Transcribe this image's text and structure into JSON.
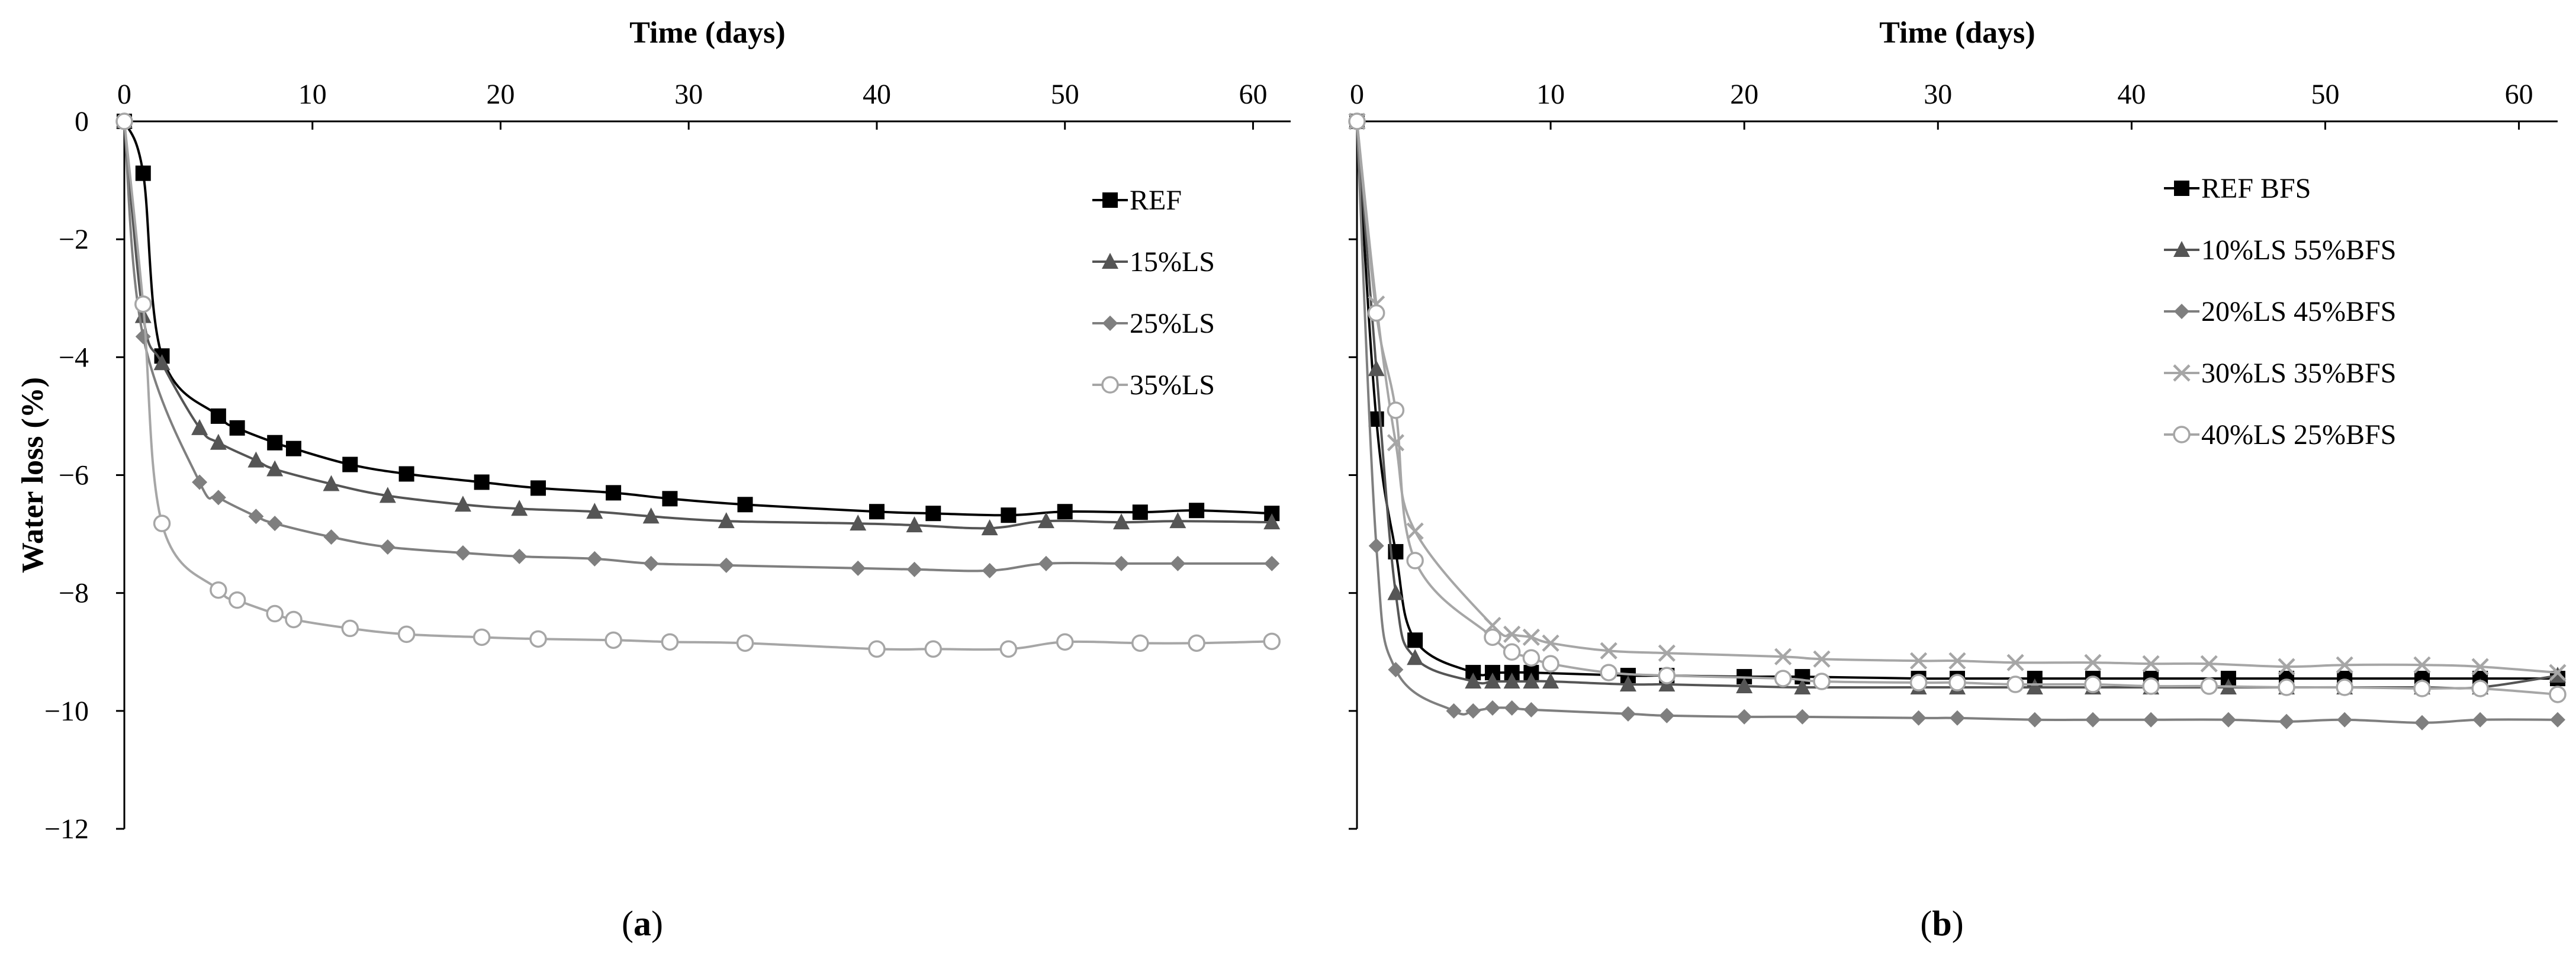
{
  "chart_data": [
    {
      "type": "line",
      "panel_label": "(a)",
      "panel_letter": "a",
      "title": "",
      "xlabel": "Time (days)",
      "ylabel": "Water loss (%)",
      "xlim": [
        0,
        62
      ],
      "ylim": [
        -12,
        0
      ],
      "xticks": [
        0,
        10,
        20,
        30,
        40,
        50,
        60
      ],
      "yticks": [
        0,
        -2,
        -4,
        -6,
        -8,
        -10,
        -12
      ],
      "xaxis_position": "top",
      "legend_position": "top-right",
      "series": [
        {
          "name": "REF",
          "marker": "square",
          "color": "#000000",
          "x": [
            0,
            1,
            2,
            5,
            6,
            8,
            9,
            12,
            15,
            19,
            22,
            26,
            29,
            33,
            40,
            43,
            47,
            50,
            54,
            57,
            61
          ],
          "y": [
            0,
            -0.88,
            -3.98,
            -5.0,
            -5.2,
            -5.45,
            -5.55,
            -5.82,
            -5.98,
            -6.12,
            -6.22,
            -6.3,
            -6.4,
            -6.5,
            -6.62,
            -6.65,
            -6.68,
            -6.62,
            -6.63,
            -6.6,
            -6.65
          ]
        },
        {
          "name": "15%LS",
          "marker": "triangle",
          "color": "#555555",
          "x": [
            0,
            1,
            2,
            4,
            5,
            7,
            8,
            11,
            14,
            18,
            21,
            25,
            28,
            32,
            39,
            42,
            46,
            49,
            53,
            56,
            61
          ],
          "y": [
            0,
            -3.3,
            -4.1,
            -5.2,
            -5.45,
            -5.75,
            -5.9,
            -6.15,
            -6.35,
            -6.5,
            -6.57,
            -6.62,
            -6.7,
            -6.78,
            -6.82,
            -6.85,
            -6.9,
            -6.78,
            -6.8,
            -6.78,
            -6.8
          ]
        },
        {
          "name": "25%LS",
          "marker": "diamond",
          "color": "#7f7f7f",
          "x": [
            0,
            1,
            4,
            5,
            7,
            8,
            11,
            14,
            18,
            21,
            25,
            28,
            32,
            39,
            42,
            46,
            49,
            53,
            56,
            61
          ],
          "y": [
            0,
            -3.65,
            -6.12,
            -6.38,
            -6.7,
            -6.82,
            -7.05,
            -7.22,
            -7.32,
            -7.38,
            -7.42,
            -7.5,
            -7.53,
            -7.58,
            -7.6,
            -7.62,
            -7.5,
            -7.5,
            -7.5,
            -7.5
          ]
        },
        {
          "name": "35%LS",
          "marker": "circle",
          "color": "#a6a6a6",
          "x": [
            0,
            1,
            2,
            5,
            6,
            8,
            9,
            12,
            15,
            19,
            22,
            26,
            29,
            33,
            40,
            43,
            47,
            50,
            54,
            57,
            61
          ],
          "y": [
            0,
            -3.1,
            -6.82,
            -7.95,
            -8.12,
            -8.35,
            -8.45,
            -8.6,
            -8.7,
            -8.75,
            -8.78,
            -8.8,
            -8.83,
            -8.85,
            -8.95,
            -8.95,
            -8.95,
            -8.83,
            -8.85,
            -8.85,
            -8.82
          ]
        }
      ]
    },
    {
      "type": "line",
      "panel_label": "(b)",
      "panel_letter": "b",
      "title": "",
      "xlabel": "Time (days)",
      "ylabel": "Water loss (%)",
      "xlim": [
        0,
        62
      ],
      "ylim": [
        -12,
        0
      ],
      "xticks": [
        0,
        10,
        20,
        30,
        40,
        50,
        60
      ],
      "yticks": [
        0,
        -2,
        -4,
        -6,
        -8,
        -10,
        -12
      ],
      "xaxis_position": "top",
      "legend_position": "top-right",
      "series": [
        {
          "name": "REF BFS",
          "marker": "square",
          "color": "#000000",
          "x": [
            0,
            1,
            2,
            3,
            6,
            7,
            8,
            9,
            14,
            16,
            20,
            23,
            29,
            31,
            35,
            38,
            41,
            45,
            48,
            51,
            55,
            58,
            62
          ],
          "y": [
            0,
            -5.05,
            -7.3,
            -8.8,
            -9.35,
            -9.35,
            -9.35,
            -9.35,
            -9.4,
            -9.4,
            -9.42,
            -9.42,
            -9.45,
            -9.45,
            -9.45,
            -9.45,
            -9.45,
            -9.45,
            -9.45,
            -9.45,
            -9.45,
            -9.45,
            -9.45
          ]
        },
        {
          "name": "10%LS 55%BFS",
          "marker": "triangle",
          "color": "#555555",
          "x": [
            0,
            1,
            2,
            3,
            6,
            7,
            8,
            9,
            10,
            14,
            16,
            20,
            23,
            29,
            31,
            35,
            38,
            41,
            45,
            48,
            51,
            55,
            58,
            62
          ],
          "y": [
            0,
            -4.2,
            -8.0,
            -9.1,
            -9.5,
            -9.5,
            -9.5,
            -9.5,
            -9.5,
            -9.55,
            -9.55,
            -9.58,
            -9.6,
            -9.6,
            -9.6,
            -9.6,
            -9.6,
            -9.6,
            -9.6,
            -9.6,
            -9.6,
            -9.6,
            -9.6,
            -9.4
          ]
        },
        {
          "name": "20%LS 45%BFS",
          "marker": "diamond",
          "color": "#7f7f7f",
          "x": [
            0,
            1,
            2,
            5,
            6,
            7,
            8,
            9,
            14,
            16,
            20,
            23,
            29,
            31,
            35,
            38,
            41,
            45,
            48,
            51,
            55,
            58,
            62
          ],
          "y": [
            0,
            -7.2,
            -9.3,
            -10.0,
            -10.0,
            -9.95,
            -9.95,
            -9.98,
            -10.05,
            -10.08,
            -10.1,
            -10.1,
            -10.12,
            -10.12,
            -10.15,
            -10.15,
            -10.15,
            -10.15,
            -10.18,
            -10.15,
            -10.2,
            -10.15,
            -10.15
          ]
        },
        {
          "name": "30%LS 35%BFS",
          "marker": "x",
          "color": "#a6a6a6",
          "x": [
            0,
            1,
            2,
            3,
            7,
            8,
            9,
            10,
            13,
            16,
            22,
            24,
            29,
            31,
            34,
            38,
            41,
            44,
            48,
            51,
            55,
            58,
            62
          ],
          "y": [
            0,
            -3.1,
            -5.45,
            -6.95,
            -8.55,
            -8.7,
            -8.75,
            -8.85,
            -8.98,
            -9.02,
            -9.08,
            -9.12,
            -9.15,
            -9.15,
            -9.18,
            -9.18,
            -9.2,
            -9.2,
            -9.25,
            -9.22,
            -9.22,
            -9.25,
            -9.35
          ]
        },
        {
          "name": "40%LS 25%BFS",
          "marker": "circle",
          "color": "#a6a6a6",
          "x": [
            0,
            1,
            2,
            3,
            7,
            8,
            9,
            10,
            13,
            16,
            22,
            24,
            29,
            31,
            34,
            38,
            41,
            44,
            48,
            51,
            55,
            58,
            62
          ],
          "y": [
            0,
            -3.25,
            -4.9,
            -7.45,
            -8.75,
            -9.0,
            -9.1,
            -9.2,
            -9.35,
            -9.4,
            -9.45,
            -9.5,
            -9.52,
            -9.52,
            -9.55,
            -9.55,
            -9.58,
            -9.58,
            -9.6,
            -9.6,
            -9.62,
            -9.62,
            -9.72
          ]
        }
      ]
    }
  ]
}
